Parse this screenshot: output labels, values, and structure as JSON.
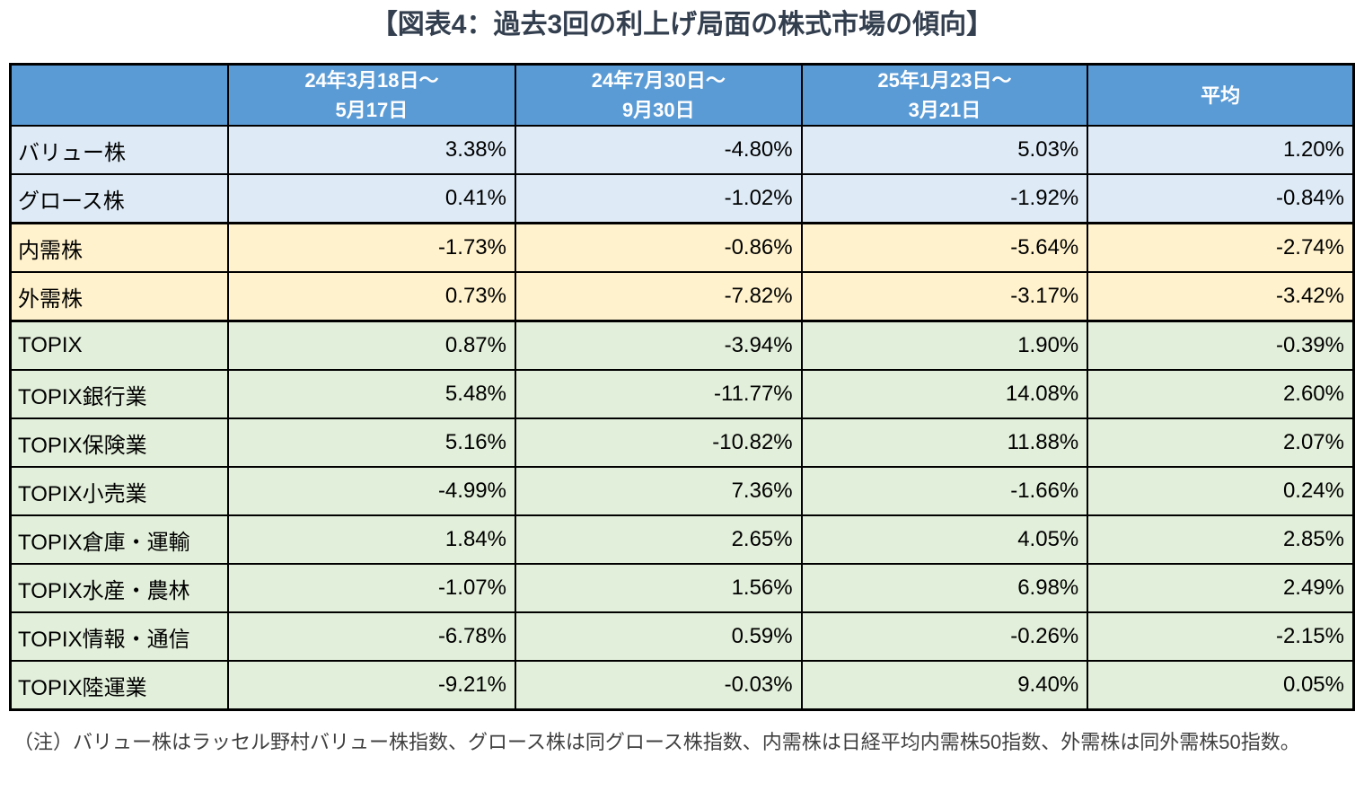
{
  "title": "【図表4：過去3回の利上げ局面の株式市場の傾向】",
  "note": "（注）バリュー株はラッセル野村バリュー株指数、グロース株は同グロース株指数、内需株は日経平均内需株50指数、外需株は同外需株50指数。",
  "colors": {
    "header_bg": "#5B9BD5",
    "header_text": "#FFFFFF",
    "value_growth_rows_bg": "#DEEBF7",
    "demand_rows_bg": "#FFF2CC",
    "topix_rows_bg": "#E2EFDA",
    "title_text": "#333F4F",
    "border": "#000000"
  },
  "chart_data": {
    "type": "table",
    "title": "【図表4：過去3回の利上げ局面の株式市場の傾向】",
    "columns": [
      "",
      "24年3月18日～\n5月17日",
      "24年7月30日～\n9月30日",
      "25年1月23日～\n3月21日",
      "平均"
    ],
    "rows": [
      {
        "label": "バリュー株",
        "group": "blue",
        "values": [
          "3.38%",
          "-4.80%",
          "5.03%",
          "1.20%"
        ]
      },
      {
        "label": "グロース株",
        "group": "blue",
        "values": [
          "0.41%",
          "-1.02%",
          "-1.92%",
          "-0.84%"
        ]
      },
      {
        "label": "内需株",
        "group": "yellow",
        "values": [
          "-1.73%",
          "-0.86%",
          "-5.64%",
          "-2.74%"
        ]
      },
      {
        "label": "外需株",
        "group": "yellow",
        "values": [
          "0.73%",
          "-7.82%",
          "-3.17%",
          "-3.42%"
        ]
      },
      {
        "label": "TOPIX",
        "group": "green",
        "values": [
          "0.87%",
          "-3.94%",
          "1.90%",
          "-0.39%"
        ]
      },
      {
        "label": "TOPIX銀行業",
        "group": "green",
        "values": [
          "5.48%",
          "-11.77%",
          "14.08%",
          "2.60%"
        ]
      },
      {
        "label": "TOPIX保険業",
        "group": "green",
        "values": [
          "5.16%",
          "-10.82%",
          "11.88%",
          "2.07%"
        ]
      },
      {
        "label": "TOPIX小売業",
        "group": "green",
        "values": [
          "-4.99%",
          "7.36%",
          "-1.66%",
          "0.24%"
        ]
      },
      {
        "label": "TOPIX倉庫・運輸",
        "group": "green",
        "values": [
          "1.84%",
          "2.65%",
          "4.05%",
          "2.85%"
        ]
      },
      {
        "label": "TOPIX水産・農林",
        "group": "green",
        "values": [
          "-1.07%",
          "1.56%",
          "6.98%",
          "2.49%"
        ]
      },
      {
        "label": "TOPIX情報・通信",
        "group": "green",
        "values": [
          "-6.78%",
          "0.59%",
          "-0.26%",
          "-2.15%"
        ]
      },
      {
        "label": "TOPIX陸運業",
        "group": "green",
        "values": [
          "-9.21%",
          "-0.03%",
          "9.40%",
          "0.05%"
        ]
      }
    ]
  }
}
